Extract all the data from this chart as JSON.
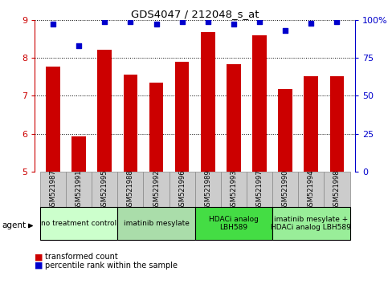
{
  "title": "GDS4047 / 212048_s_at",
  "samples": [
    "GSM521987",
    "GSM521991",
    "GSM521995",
    "GSM521988",
    "GSM521992",
    "GSM521996",
    "GSM521989",
    "GSM521993",
    "GSM521997",
    "GSM521990",
    "GSM521994",
    "GSM521998"
  ],
  "bar_values": [
    7.78,
    5.93,
    8.22,
    7.55,
    7.35,
    7.9,
    8.68,
    7.84,
    8.6,
    7.18,
    7.52,
    7.52
  ],
  "percentile_values": [
    97,
    83,
    99,
    99,
    97,
    99,
    99,
    97,
    99,
    93,
    98,
    99
  ],
  "bar_color": "#cc0000",
  "dot_color": "#0000cc",
  "ylim_left": [
    5,
    9
  ],
  "ylim_right": [
    0,
    100
  ],
  "yticks_left": [
    5,
    6,
    7,
    8,
    9
  ],
  "yticks_right": [
    0,
    25,
    50,
    75,
    100
  ],
  "ytick_labels_right": [
    "0",
    "25",
    "50",
    "75",
    "100%"
  ],
  "groups": [
    {
      "label": "no treatment control",
      "start": 0,
      "end": 3,
      "color": "#ccffcc"
    },
    {
      "label": "imatinib mesylate",
      "start": 3,
      "end": 6,
      "color": "#aaddaa"
    },
    {
      "label": "HDACi analog\nLBH589",
      "start": 6,
      "end": 9,
      "color": "#44dd44"
    },
    {
      "label": "imatinib mesylate +\nHDACi analog LBH589",
      "start": 9,
      "end": 12,
      "color": "#99ee99"
    }
  ],
  "bar_width": 0.55,
  "sample_box_color": "#cccccc",
  "sample_box_edge": "#888888",
  "agent_label": "agent"
}
